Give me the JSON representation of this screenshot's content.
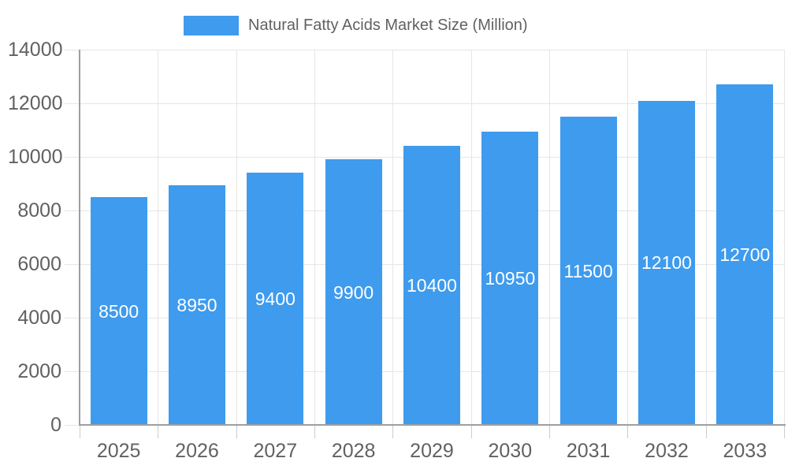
{
  "legend": {
    "label": "Natural Fatty Acids Market Size (Million)"
  },
  "chart_data": {
    "type": "bar",
    "title": "Natural Fatty Acids Market Size (Million)",
    "categories": [
      "2025",
      "2026",
      "2027",
      "2028",
      "2029",
      "2030",
      "2031",
      "2032",
      "2033"
    ],
    "series": [
      {
        "name": "Natural Fatty Acids Market Size (Million)",
        "values": [
          8500,
          8950,
          9400,
          9900,
          10400,
          10950,
          11500,
          12100,
          12700
        ]
      }
    ],
    "bar_labels": [
      "8500",
      "8950",
      "9400",
      "9900",
      "10400",
      "10950",
      "11500",
      "12100",
      "12700"
    ],
    "xlabel": "",
    "ylabel": "",
    "ylim": [
      0,
      14000
    ],
    "yticks": [
      0,
      2000,
      4000,
      6000,
      8000,
      10000,
      12000,
      14000
    ],
    "grid": true,
    "legend_position": "top-center",
    "colors": {
      "bar": "#3E9BEE",
      "grid": "#E6E6E6",
      "axis": "#9E9E9E",
      "x_tick_stub": "#CCCCCC",
      "tick_text": "#616161",
      "legend_text": "#616161",
      "bar_label_text": "#FFFFFF",
      "background": "#FFFFFF"
    }
  }
}
